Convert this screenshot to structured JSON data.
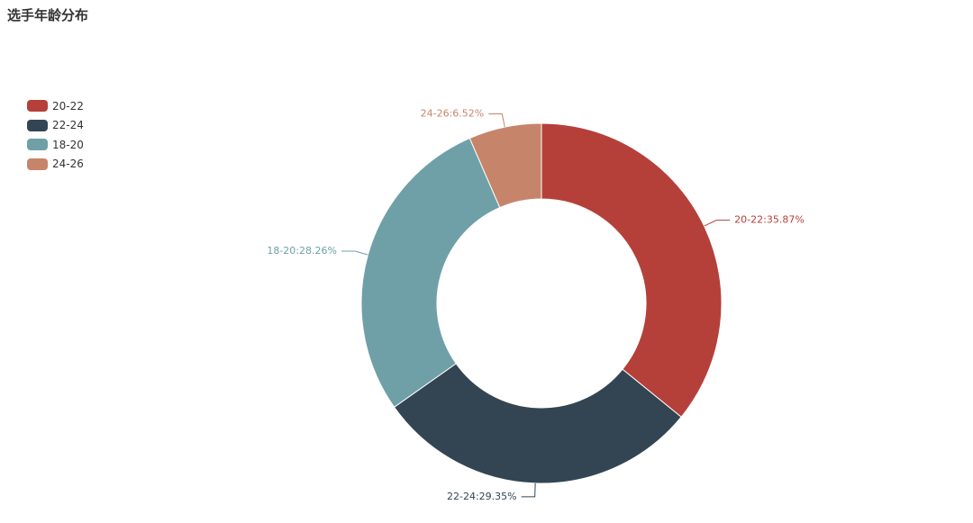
{
  "title": "选手年龄分布",
  "chart_data": {
    "type": "pie",
    "donut": true,
    "title": "选手年龄分布",
    "legend_position": "top-left",
    "slices": [
      {
        "name": "20-22",
        "value": 35.87,
        "color": "#b5403a",
        "label": "20-22:35.87%"
      },
      {
        "name": "22-24",
        "value": 29.35,
        "color": "#334553",
        "label": "22-24:29.35%"
      },
      {
        "name": "18-20",
        "value": 28.26,
        "color": "#6fa0a7",
        "label": "18-20:28.26%"
      },
      {
        "name": "24-26",
        "value": 6.52,
        "color": "#c6846a",
        "label": "24-26:6.52%"
      }
    ]
  }
}
